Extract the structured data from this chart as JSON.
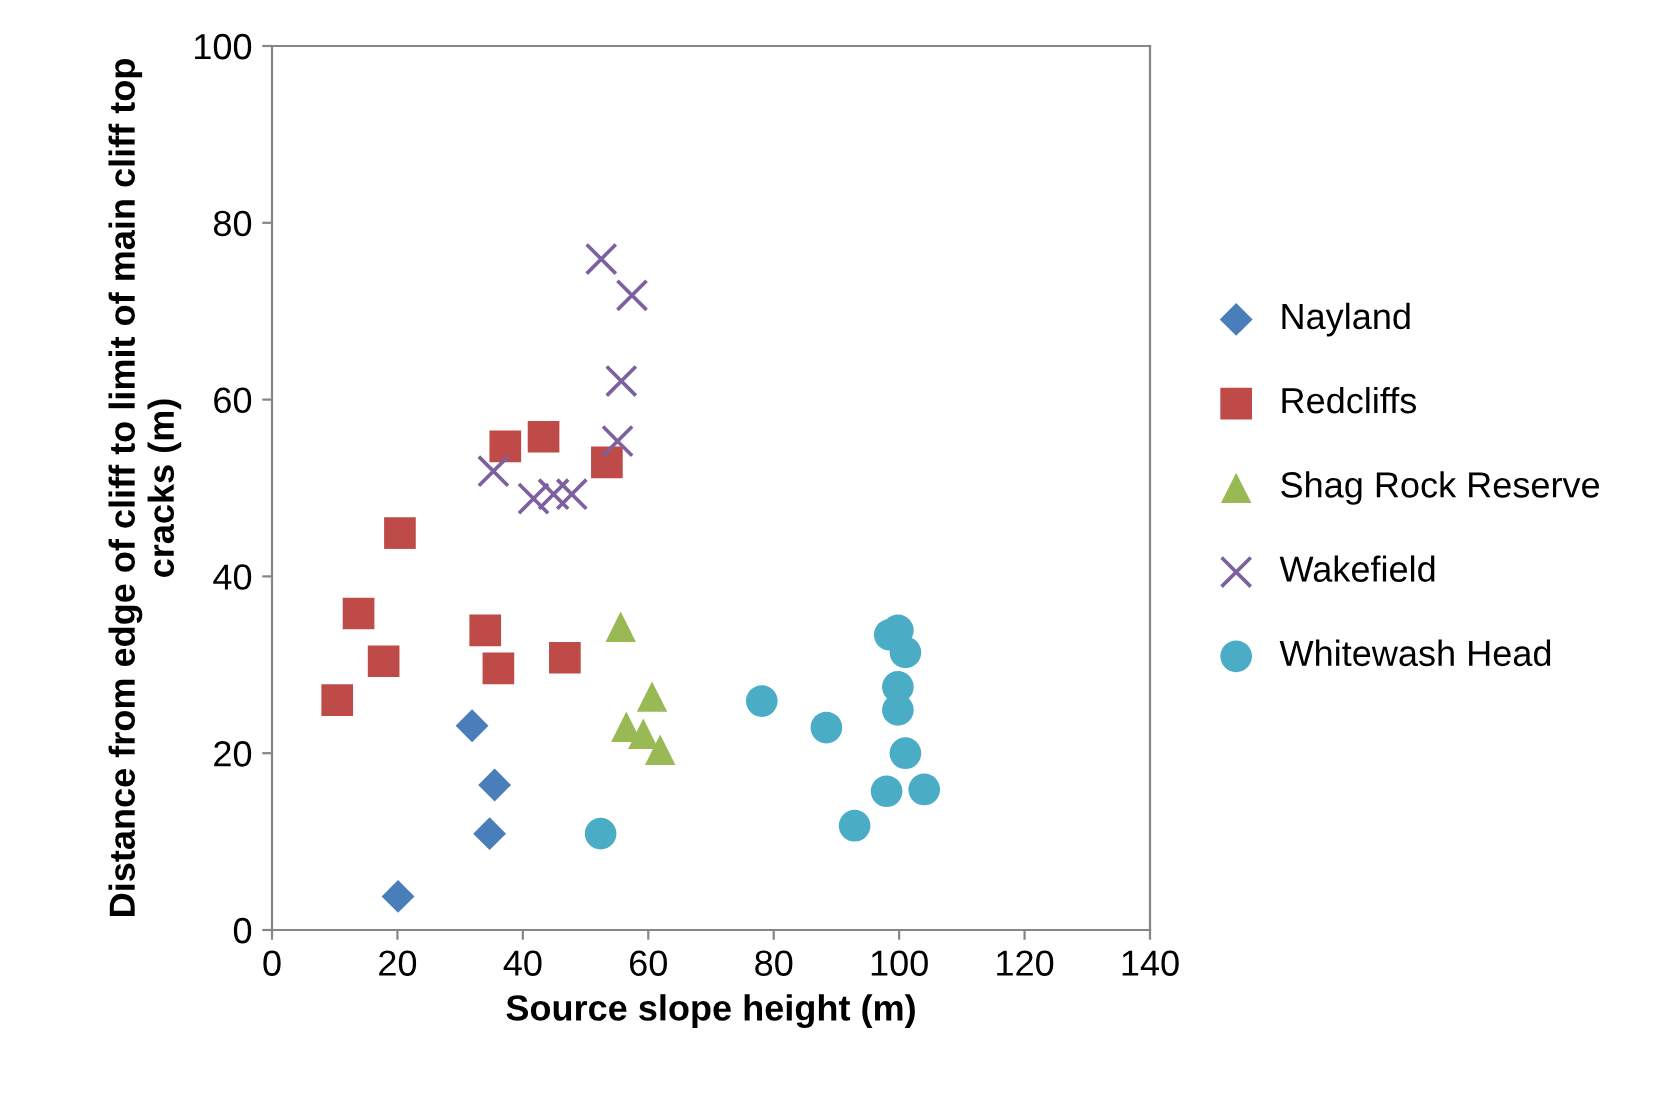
{
  "chart_data": {
    "type": "scatter",
    "xlabel": "Source slope height (m)",
    "ylabel": "Distance from edge of cliff to limit of main cliff top cracks (m)",
    "xlim": [
      0,
      140
    ],
    "xticks": [
      0,
      20,
      40,
      60,
      80,
      100,
      120,
      140
    ],
    "ylim": [
      0,
      100
    ],
    "yticks": [
      0,
      20,
      40,
      60,
      80,
      100
    ],
    "grid": false,
    "legend": "right",
    "series": [
      {
        "name": "Nayland",
        "color": "#4a7ebb",
        "marker": "diamond",
        "x": [
          31.9,
          35.5,
          34.7,
          20.1
        ],
        "values": [
          23.1,
          16.4,
          10.9,
          3.8
        ]
      },
      {
        "name": "Redcliffs",
        "color": "#be4b48",
        "marker": "square",
        "x": [
          10.4,
          13.8,
          17.8,
          20.4,
          34.0,
          36.1,
          37.2,
          43.3,
          46.7,
          53.4
        ],
        "values": [
          26.0,
          35.8,
          30.4,
          44.9,
          33.9,
          29.6,
          54.7,
          55.8,
          30.8,
          52.9
        ]
      },
      {
        "name": "Shag Rock Reserve",
        "color": "#98b954",
        "marker": "triangle",
        "x": [
          55.6,
          60.6,
          56.5,
          59.2,
          61.9
        ],
        "values": [
          34.3,
          26.4,
          23.0,
          22.2,
          20.4
        ]
      },
      {
        "name": "Wakefield",
        "color": "#7d60a0",
        "marker": "cross",
        "x": [
          52.5,
          57.4,
          55.7,
          55.1,
          35.3,
          41.7,
          44.9,
          47.8
        ],
        "values": [
          75.9,
          71.8,
          62.1,
          55.3,
          51.9,
          48.8,
          49.3,
          49.3
        ]
      },
      {
        "name": "Whitewash Head",
        "color": "#4bacc6",
        "marker": "circle",
        "x": [
          52.4,
          78.1,
          88.4,
          92.9,
          98.5,
          99.8,
          101.0,
          99.8,
          99.8,
          101.0,
          98.0,
          104.0
        ],
        "values": [
          10.9,
          25.9,
          22.9,
          11.8,
          33.4,
          33.9,
          31.4,
          27.5,
          24.9,
          20.0,
          15.7,
          15.9
        ]
      }
    ]
  }
}
